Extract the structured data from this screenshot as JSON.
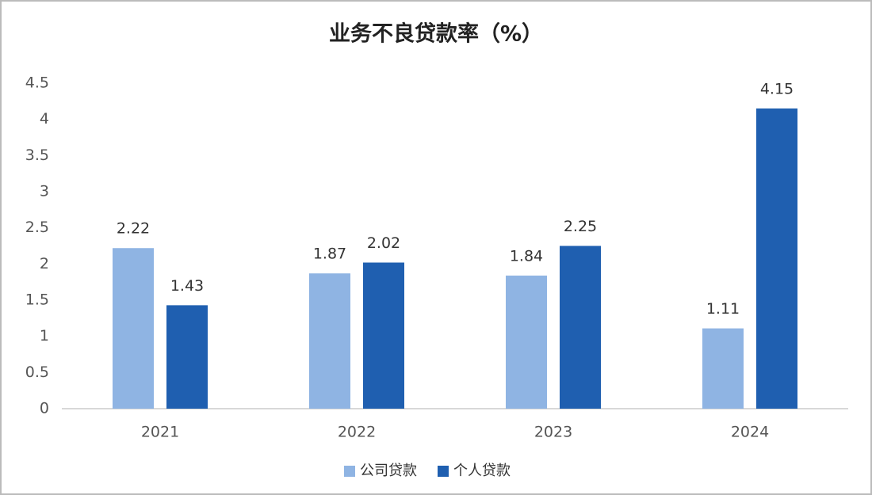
{
  "chart_data": {
    "type": "bar",
    "title": "业务不良贷款率（%）",
    "categories": [
      "2021",
      "2022",
      "2023",
      "2024"
    ],
    "series": [
      {
        "name": "公司贷款",
        "color": "#8fb4e3",
        "values": [
          2.22,
          1.87,
          1.84,
          1.11
        ]
      },
      {
        "name": "个人贷款",
        "color": "#1f5fb0",
        "values": [
          1.43,
          2.02,
          2.25,
          4.15
        ]
      }
    ],
    "ylim": [
      0,
      4.5
    ],
    "yticks": [
      0,
      0.5,
      1,
      1.5,
      2,
      2.5,
      3,
      3.5,
      4,
      4.5
    ],
    "grid": false,
    "legend": "bottom"
  }
}
